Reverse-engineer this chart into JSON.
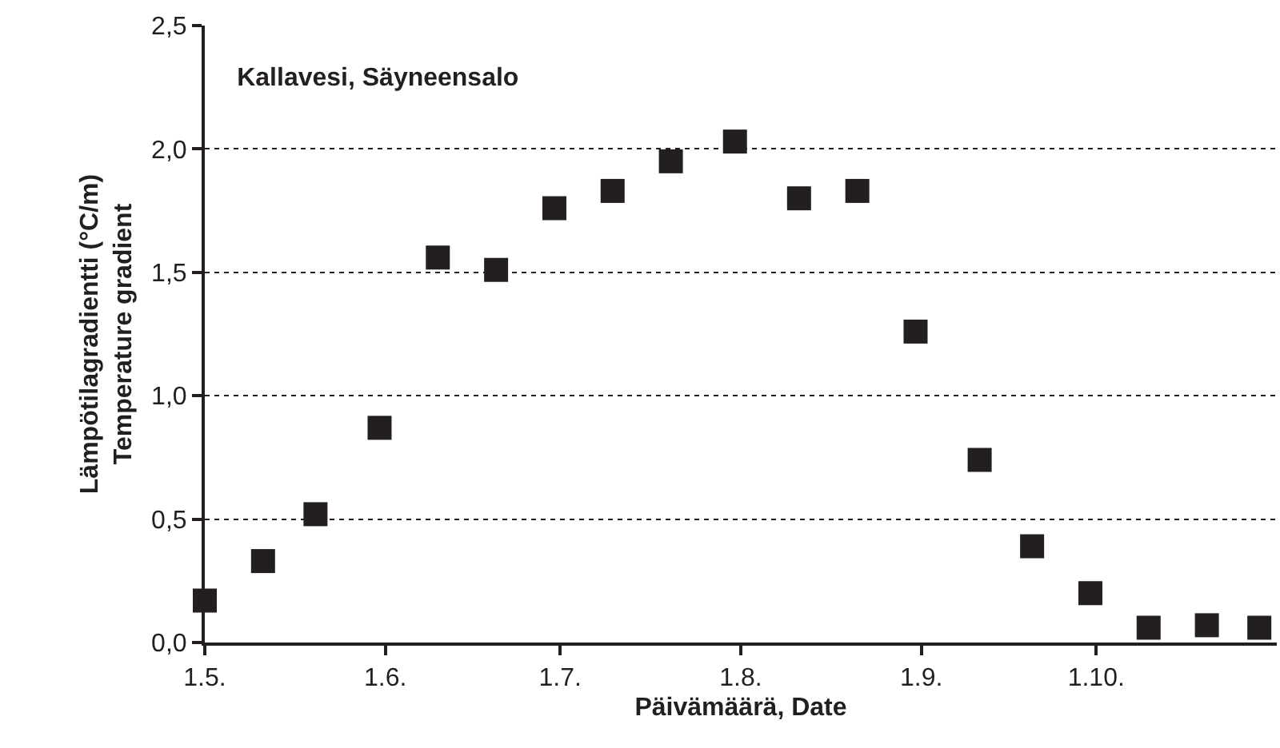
{
  "chart_data": {
    "type": "scatter",
    "title": "Kallavesi, Säyneensalo",
    "xlabel": "Päivämäärä, Date",
    "ylabel": "Lämpötilagradientti (°C/m)\nTemperature gradient",
    "x": [
      "--05-01",
      "--05-11",
      "--05-20",
      "--05-31",
      "--06-10",
      "--06-20",
      "--06-30",
      "--07-10",
      "--07-20",
      "--07-31",
      "--08-11",
      "--08-21",
      "--08-31",
      "--09-11",
      "--09-20",
      "--09-30",
      "--10-10",
      "--10-20",
      "--10-29"
    ],
    "series": [
      {
        "color": "#231f20",
        "values": [
          0.17,
          0.33,
          0.52,
          0.87,
          1.56,
          1.51,
          1.76,
          1.83,
          1.95,
          2.03,
          1.8,
          1.83,
          1.26,
          0.74,
          0.39,
          0.2,
          0.06,
          0.07,
          0.06
        ]
      }
    ],
    "xlim": [
      "--05-01",
      "--11-01"
    ],
    "xticks": [
      {
        "value": "--05-01",
        "label": "1.5."
      },
      {
        "value": "--06-01",
        "label": "1.6."
      },
      {
        "value": "--07-01",
        "label": "1.7."
      },
      {
        "value": "--08-01",
        "label": "1.8."
      },
      {
        "value": "--09-01",
        "label": "1.9."
      },
      {
        "value": "--10-01",
        "label": "1.10."
      }
    ],
    "ylim": [
      0,
      2.5
    ],
    "yticks": [
      {
        "value": 0,
        "label": "0,0"
      },
      {
        "value": 0.5,
        "label": "0,5"
      },
      {
        "value": 1,
        "label": "1,0"
      },
      {
        "value": 1.5,
        "label": "1,5"
      },
      {
        "value": 2,
        "label": "2,0"
      },
      {
        "value": 2.5,
        "label": "2,5"
      }
    ],
    "grid": "y",
    "marker": "square"
  }
}
